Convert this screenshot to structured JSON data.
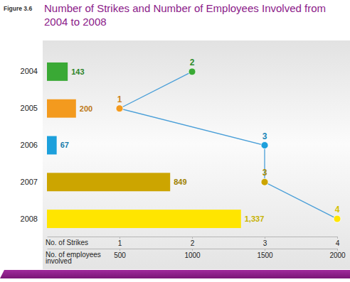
{
  "chart_data": {
    "type": "bar",
    "orientation": "horizontal",
    "figure_label": "Figure 3.6",
    "title": "Number of Strikes and Number of Employees Involved from 2004 to 2008",
    "categories": [
      "2004",
      "2005",
      "2006",
      "2007",
      "2008"
    ],
    "ylabel": "No. of employees involved",
    "ylim": [
      0,
      2000
    ],
    "yticks": [
      500,
      1000,
      1500,
      2000
    ],
    "y2label": "No. of Strikes",
    "y2lim": [
      0,
      4
    ],
    "y2ticks": [
      1,
      2,
      3,
      4
    ],
    "series": [
      {
        "type": "bar",
        "values": [
          143,
          200,
          67,
          849,
          1337
        ],
        "value_labels": [
          "143",
          "200",
          "67",
          "849",
          "1,337"
        ],
        "colors": [
          "#3aa935",
          "#f39a1e",
          "#1da0dc",
          "#cca500",
          "#ffe500"
        ],
        "data_labels": true
      },
      {
        "type": "line",
        "axis": "y2",
        "values": [
          2,
          1,
          3,
          3,
          4
        ],
        "color": "#4a9fd8",
        "colors": [
          "#3aa935",
          "#f39a1e",
          "#1da0dc",
          "#cca500",
          "#ffe500"
        ],
        "marker": "circle",
        "data_labels": true
      }
    ]
  }
}
